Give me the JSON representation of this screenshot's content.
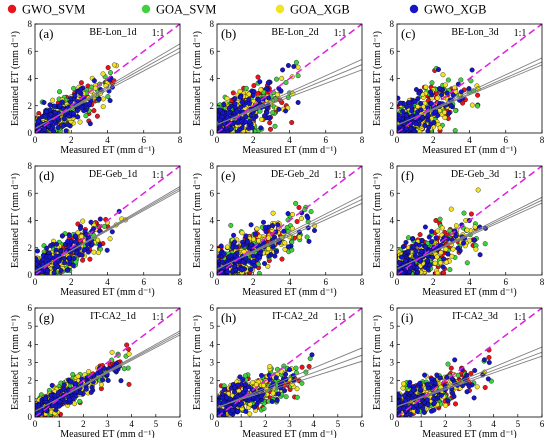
{
  "legend": {
    "placement": "top",
    "entries": [
      {
        "label": "GWO_SVM",
        "color": "#e8141c"
      },
      {
        "label": "GOA_SVM",
        "color": "#3fd13f"
      },
      {
        "label": "GOA_XGB",
        "color": "#f2e322"
      },
      {
        "label": "GWO_XGB",
        "color": "#1616c8"
      }
    ]
  },
  "colors": {
    "one_to_one": "#e020e0",
    "regression": "#808080",
    "marker_edge": "#000000"
  },
  "chart_data": [
    {
      "type": "scatter",
      "panel": "(a)",
      "site": "BE-Lon_1d",
      "ref_label": "1:1",
      "xlabel": "Measured ET (mm d⁻¹)",
      "ylabel": "Estimated ET (mm d⁻¹)",
      "xlim": [
        0,
        8
      ],
      "ylim": [
        0,
        8
      ],
      "xticks": [
        0,
        2,
        4,
        6,
        8
      ],
      "yticks": [
        0,
        2,
        4,
        6,
        8
      ],
      "fit_lines": [
        {
          "slope": 0.78,
          "intercept": 0.3
        },
        {
          "slope": 0.74,
          "intercept": 0.33
        },
        {
          "slope": 0.7,
          "intercept": 0.36
        }
      ],
      "cloud": {
        "x_max": 4.5,
        "y_spread": 1.0
      }
    },
    {
      "type": "scatter",
      "panel": "(b)",
      "site": "BE-Lon_2d",
      "ref_label": "1:1",
      "xlabel": "Measured ET (mm d⁻¹)",
      "ylabel": "Estimated ET (mm d⁻¹)",
      "xlim": [
        0,
        8
      ],
      "ylim": [
        0,
        8
      ],
      "xticks": [
        0,
        2,
        4,
        6,
        8
      ],
      "yticks": [
        0,
        2,
        4,
        6,
        8
      ],
      "fit_lines": [
        {
          "slope": 0.6,
          "intercept": 0.6
        },
        {
          "slope": 0.55,
          "intercept": 0.62
        },
        {
          "slope": 0.5,
          "intercept": 0.64
        }
      ],
      "cloud": {
        "x_max": 4.5,
        "y_spread": 1.3
      }
    },
    {
      "type": "scatter",
      "panel": "(c)",
      "site": "BE-Lon_3d",
      "ref_label": "1:1",
      "xlabel": "Measured ET (mm d⁻¹)",
      "ylabel": "Estimated ET (mm d⁻¹)",
      "xlim": [
        0,
        8
      ],
      "ylim": [
        0,
        8
      ],
      "xticks": [
        0,
        2,
        4,
        6,
        8
      ],
      "yticks": [
        0,
        2,
        4,
        6,
        8
      ],
      "fit_lines": [
        {
          "slope": 0.62,
          "intercept": 0.55
        },
        {
          "slope": 0.58,
          "intercept": 0.57
        },
        {
          "slope": 0.55,
          "intercept": 0.6
        }
      ],
      "cloud": {
        "x_max": 4.5,
        "y_spread": 1.3
      }
    },
    {
      "type": "scatter",
      "panel": "(d)",
      "site": "DE-Geb_1d",
      "ref_label": "1:1",
      "xlabel": "Measured ET (mm d⁻¹)",
      "ylabel": "Estimated ET (mm d⁻¹)",
      "xlim": [
        0,
        8
      ],
      "ylim": [
        0,
        8
      ],
      "xticks": [
        0,
        2,
        4,
        6,
        8
      ],
      "yticks": [
        0,
        2,
        4,
        6,
        8
      ],
      "fit_lines": [
        {
          "slope": 0.78,
          "intercept": 0.25
        },
        {
          "slope": 0.76,
          "intercept": 0.27
        },
        {
          "slope": 0.74,
          "intercept": 0.29
        }
      ],
      "cloud": {
        "x_max": 5.0,
        "y_spread": 1.0
      }
    },
    {
      "type": "scatter",
      "panel": "(e)",
      "site": "DE-Geb_2d",
      "ref_label": "1:1",
      "xlabel": "Measured ET (mm d⁻¹)",
      "ylabel": "Estimated ET (mm d⁻¹)",
      "xlim": [
        0,
        8
      ],
      "ylim": [
        0,
        8
      ],
      "xticks": [
        0,
        2,
        4,
        6,
        8
      ],
      "yticks": [
        0,
        2,
        4,
        6,
        8
      ],
      "fit_lines": [
        {
          "slope": 0.68,
          "intercept": 0.4
        },
        {
          "slope": 0.64,
          "intercept": 0.43
        },
        {
          "slope": 0.6,
          "intercept": 0.46
        }
      ],
      "cloud": {
        "x_max": 5.5,
        "y_spread": 1.3
      }
    },
    {
      "type": "scatter",
      "panel": "(f)",
      "site": "DE-Geb_3d",
      "ref_label": "1:1",
      "xlabel": "Measured ET (mm d⁻¹)",
      "ylabel": "Estimated ET (mm d⁻¹)",
      "xlim": [
        0,
        8
      ],
      "ylim": [
        0,
        8
      ],
      "xticks": [
        0,
        2,
        4,
        6,
        8
      ],
      "yticks": [
        0,
        2,
        4,
        6,
        8
      ],
      "fit_lines": [
        {
          "slope": 0.66,
          "intercept": 0.42
        },
        {
          "slope": 0.63,
          "intercept": 0.45
        },
        {
          "slope": 0.6,
          "intercept": 0.48
        }
      ],
      "cloud": {
        "x_max": 5.0,
        "y_spread": 1.2
      }
    },
    {
      "type": "scatter",
      "panel": "(g)",
      "site": "IT-CA2_1d",
      "ref_label": "1:1",
      "xlabel": "Measured ET (mm d⁻¹)",
      "ylabel": "Estimated ET (mm d⁻¹)",
      "xlim": [
        0,
        6
      ],
      "ylim": [
        0,
        6
      ],
      "xticks": [
        0,
        1,
        2,
        3,
        4,
        5,
        6
      ],
      "yticks": [
        0,
        1,
        2,
        3,
        4,
        5,
        6
      ],
      "fit_lines": [
        {
          "slope": 0.74,
          "intercept": 0.3
        },
        {
          "slope": 0.72,
          "intercept": 0.31
        },
        {
          "slope": 0.7,
          "intercept": 0.32
        }
      ],
      "cloud": {
        "x_max": 4.0,
        "y_spread": 0.55
      }
    },
    {
      "type": "scatter",
      "panel": "(h)",
      "site": "IT-CA2_2d",
      "ref_label": "1:1",
      "xlabel": "Measured ET (mm d⁻¹)",
      "ylabel": "Estimated ET (mm d⁻¹)",
      "xlim": [
        0,
        6
      ],
      "ylim": [
        0,
        6
      ],
      "xticks": [
        0,
        1,
        2,
        3,
        4,
        5,
        6
      ],
      "yticks": [
        0,
        1,
        2,
        3,
        4,
        5,
        6
      ],
      "fit_lines": [
        {
          "slope": 0.55,
          "intercept": 0.5
        },
        {
          "slope": 0.48,
          "intercept": 0.52
        },
        {
          "slope": 0.42,
          "intercept": 0.55
        }
      ],
      "cloud": {
        "x_max": 4.0,
        "y_spread": 0.8
      }
    },
    {
      "type": "scatter",
      "panel": "(i)",
      "site": "IT-CA2_3d",
      "ref_label": "1:1",
      "xlabel": "Measured ET (mm d⁻¹)",
      "ylabel": "Estimated ET (mm d⁻¹)",
      "xlim": [
        0,
        6
      ],
      "ylim": [
        0,
        6
      ],
      "xticks": [
        0,
        1,
        2,
        3,
        4,
        5,
        6
      ],
      "yticks": [
        0,
        1,
        2,
        3,
        4,
        5,
        6
      ],
      "fit_lines": [
        {
          "slope": 0.55,
          "intercept": 0.55
        },
        {
          "slope": 0.5,
          "intercept": 0.57
        },
        {
          "slope": 0.46,
          "intercept": 0.59
        }
      ],
      "cloud": {
        "x_max": 4.0,
        "y_spread": 0.75
      }
    }
  ]
}
